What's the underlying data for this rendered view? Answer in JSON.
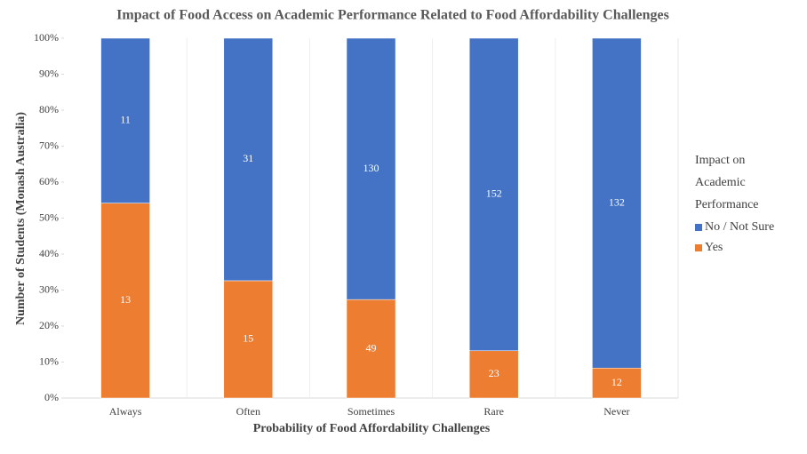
{
  "chart_data": {
    "type": "bar",
    "stacking": "percent",
    "title": "Impact of Food Access on Academic Performance Related to Food Affordability Challenges",
    "x_label": "Probability of Food Affordability Challenges",
    "y_label": "Number of Students (Monash Australia)",
    "legend_title": "Impact on Academic Performance",
    "legend_position": "right",
    "categories": [
      "Always",
      "Often",
      "Sometimes",
      "Rare",
      "Never"
    ],
    "series": [
      {
        "name": "No / Not Sure",
        "color": "#4472c4",
        "values": [
          11,
          31,
          130,
          152,
          132
        ]
      },
      {
        "name": "Yes",
        "color": "#ed7d31",
        "values": [
          13,
          15,
          49,
          23,
          12
        ]
      }
    ],
    "ylim": [
      0,
      100
    ],
    "yticks": [
      {
        "value": 0,
        "label": "0%"
      },
      {
        "value": 10,
        "label": "10%"
      },
      {
        "value": 20,
        "label": "20%"
      },
      {
        "value": 30,
        "label": "30%"
      },
      {
        "value": 40,
        "label": "40%"
      },
      {
        "value": 50,
        "label": "50%"
      },
      {
        "value": 60,
        "label": "60%"
      },
      {
        "value": 70,
        "label": "70%"
      },
      {
        "value": 80,
        "label": "80%"
      },
      {
        "value": 90,
        "label": "90%"
      },
      {
        "value": 100,
        "label": "100%"
      }
    ]
  }
}
